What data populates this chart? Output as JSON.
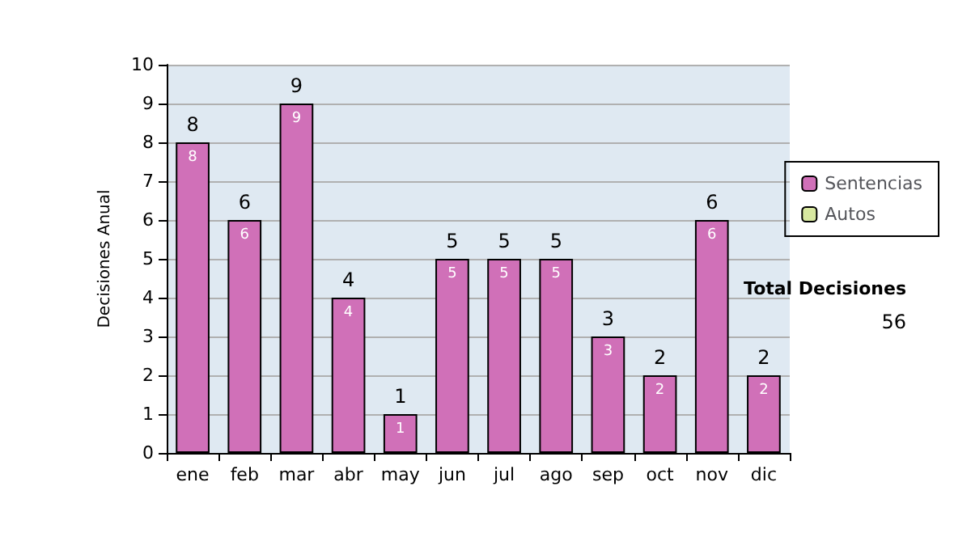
{
  "chart_data": {
    "type": "bar",
    "ylabel": "Decisiones Anual",
    "categories": [
      "ene",
      "feb",
      "mar",
      "abr",
      "may",
      "jun",
      "jul",
      "ago",
      "sep",
      "oct",
      "nov",
      "dic"
    ],
    "series": [
      {
        "name": "Sentencias",
        "color": "#d070b8",
        "values": [
          8,
          6,
          9,
          4,
          1,
          5,
          5,
          5,
          3,
          2,
          6,
          2
        ],
        "value_labels": [
          "8",
          "6",
          "9",
          "4",
          "1",
          "5",
          "5",
          "5",
          "3",
          "2",
          "6",
          "2"
        ]
      },
      {
        "name": "Autos",
        "color": "#d8e8a0",
        "values": [
          0,
          0,
          0,
          0,
          0,
          0,
          0,
          0,
          0,
          0,
          0,
          0
        ],
        "value_labels": [
          null,
          null,
          null,
          null,
          null,
          null,
          null,
          null,
          null,
          null,
          null,
          null
        ]
      }
    ],
    "stacked": true,
    "totals": [
      "8",
      "6",
      "9",
      "4",
      "1",
      "5",
      "5",
      "5",
      "3",
      "2",
      "6",
      "2"
    ],
    "ylim": [
      0,
      10
    ],
    "yticks": [
      0,
      1,
      2,
      3,
      4,
      5,
      6,
      7,
      8,
      9,
      10
    ],
    "grid": "y",
    "legend": "right",
    "annotations": [
      "Total Decisiones",
      "56"
    ]
  }
}
